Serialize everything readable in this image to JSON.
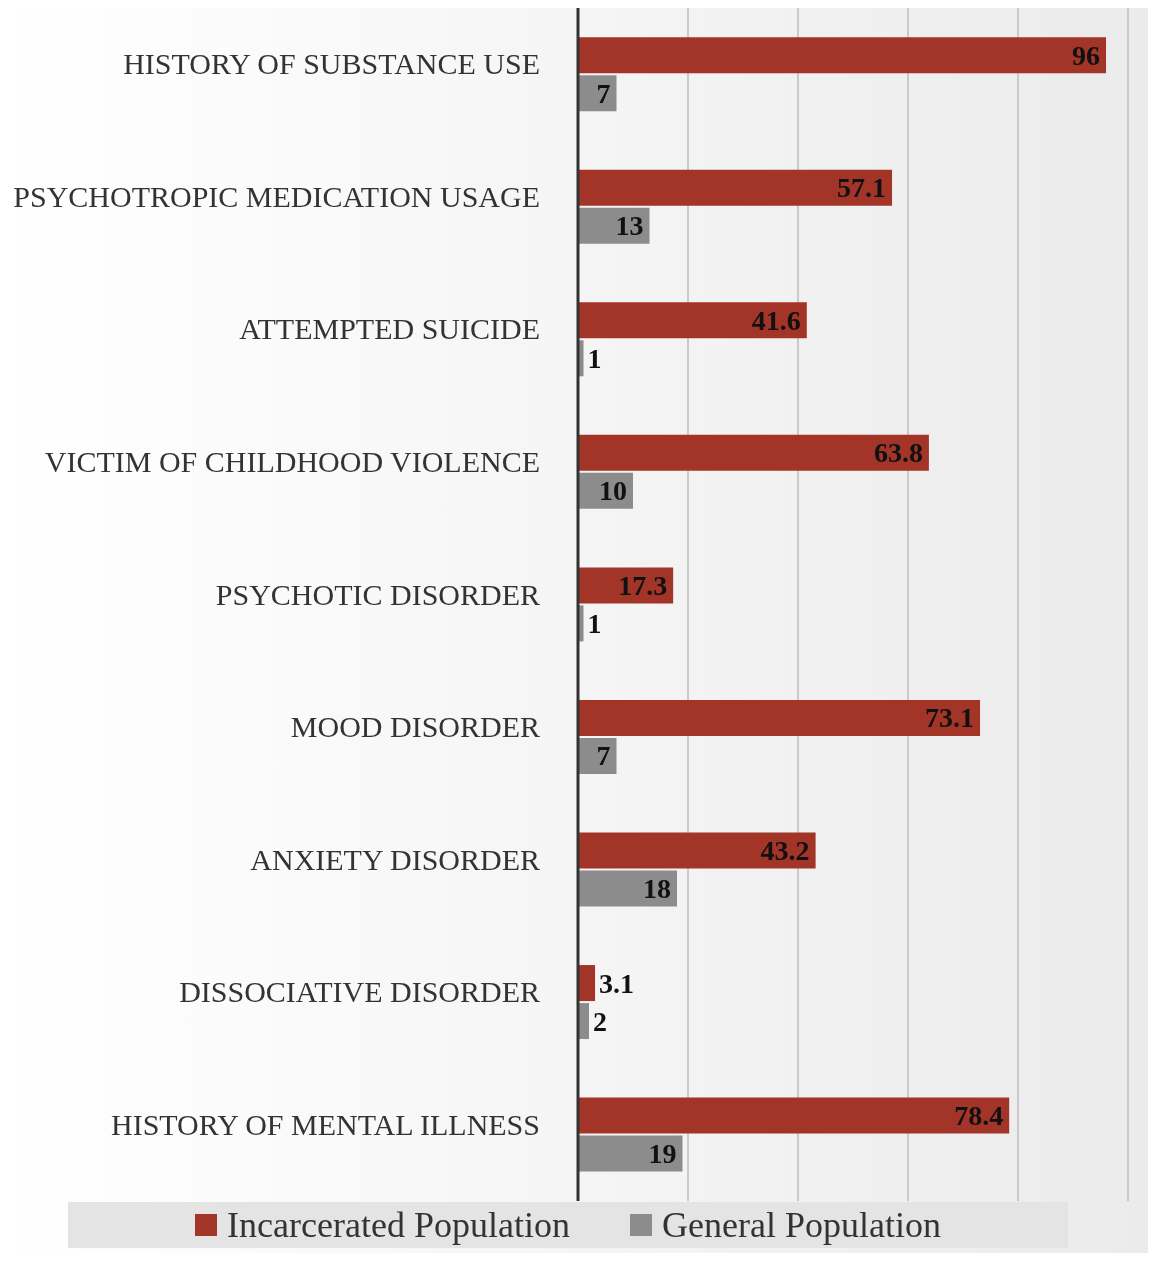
{
  "chart_data": {
    "type": "bar",
    "orientation": "horizontal",
    "categories": [
      "HISTORY OF SUBSTANCE USE",
      "PSYCHOTROPIC MEDICATION USAGE",
      "ATTEMPTED SUICIDE",
      "VICTIM OF CHILDHOOD VIOLENCE",
      "PSYCHOTIC DISORDER",
      "MOOD DISORDER",
      "ANXIETY DISORDER",
      "DISSOCIATIVE DISORDER",
      "HISTORY OF MENTAL ILLNESS"
    ],
    "series": [
      {
        "name": "Incarcerated Population",
        "color": "#a33428",
        "values": [
          96,
          57.1,
          41.6,
          63.8,
          17.3,
          73.1,
          43.2,
          3.1,
          78.4
        ]
      },
      {
        "name": "General Population",
        "color": "#8c8c8c",
        "values": [
          7,
          13,
          1,
          10,
          1,
          7,
          18,
          2,
          19
        ]
      }
    ],
    "tick_labels": "y",
    "grid": "x",
    "legend": "bottom",
    "data_labels": true
  }
}
